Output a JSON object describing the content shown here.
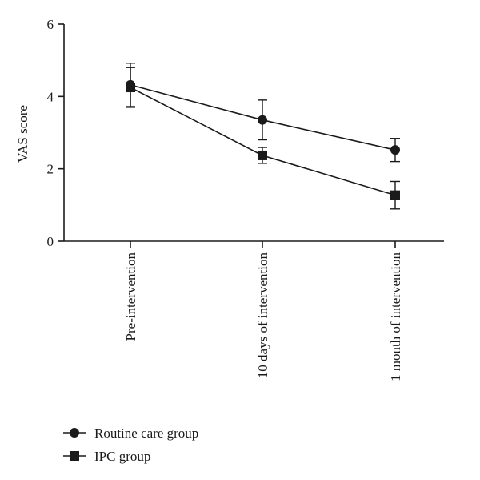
{
  "chart_data": {
    "type": "line",
    "title": "",
    "xlabel": "",
    "ylabel": "VAS score",
    "ylim": [
      0,
      6
    ],
    "yticks": [
      "0",
      "2",
      "4",
      "6"
    ],
    "categories": [
      "Pre-intervention",
      "10 days of intervention",
      "1 month of intervention"
    ],
    "series": [
      {
        "name": "Routine care group",
        "marker": "circle",
        "values": [
          4.32,
          3.35,
          2.52
        ],
        "error": [
          0.6,
          0.55,
          0.32
        ]
      },
      {
        "name": "IPC group",
        "marker": "square",
        "values": [
          4.25,
          2.37,
          1.27
        ],
        "error": [
          0.55,
          0.22,
          0.38
        ]
      }
    ],
    "legend_placement": "bottom-left",
    "grid": false,
    "colors": {
      "line": "#1a1a1a"
    }
  }
}
